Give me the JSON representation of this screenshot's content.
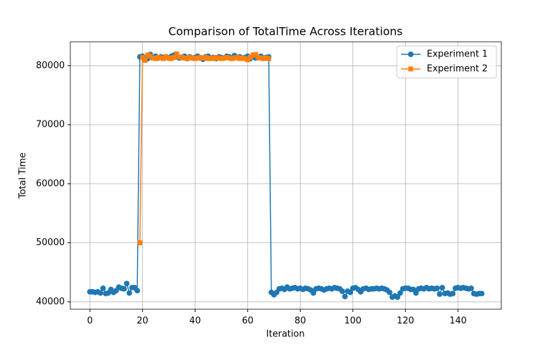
{
  "chart_data": {
    "type": "line",
    "title": "Comparison of TotalTime Across Iterations",
    "xlabel": "Iteration",
    "ylabel": "Total Time",
    "x": [
      0,
      1,
      2,
      3,
      4,
      5,
      6,
      7,
      8,
      9,
      10,
      11,
      12,
      13,
      14,
      15,
      16,
      17,
      18,
      19,
      20,
      21,
      22,
      23,
      24,
      25,
      26,
      27,
      28,
      29,
      30,
      31,
      32,
      33,
      34,
      35,
      36,
      37,
      38,
      39,
      40,
      41,
      42,
      43,
      44,
      45,
      46,
      47,
      48,
      49,
      50,
      51,
      52,
      53,
      54,
      55,
      56,
      57,
      58,
      59,
      60,
      61,
      62,
      63,
      64,
      65,
      66,
      67,
      68,
      69,
      70,
      71,
      72,
      73,
      74,
      75,
      76,
      77,
      78,
      79,
      80,
      81,
      82,
      83,
      84,
      85,
      86,
      87,
      88,
      89,
      90,
      91,
      92,
      93,
      94,
      95,
      96,
      97,
      98,
      99,
      100,
      101,
      102,
      103,
      104,
      105,
      106,
      107,
      108,
      109,
      110,
      111,
      112,
      113,
      114,
      115,
      116,
      117,
      118,
      119,
      120,
      121,
      122,
      123,
      124,
      125,
      126,
      127,
      128,
      129,
      130,
      131,
      132,
      133,
      134,
      135,
      136,
      137,
      138,
      139,
      140,
      141,
      142,
      143,
      144,
      145,
      146,
      147,
      148,
      149
    ],
    "series": [
      {
        "name": "Experiment 1",
        "color": "#1f77b4",
        "marker": "circle",
        "values": [
          41700,
          41700,
          41600,
          41700,
          41500,
          42300,
          41400,
          41500,
          42100,
          41600,
          41900,
          42500,
          42300,
          42200,
          43100,
          41500,
          42400,
          42400,
          41900,
          81500,
          81600,
          81300,
          81200,
          81900,
          81400,
          81600,
          81300,
          81500,
          81400,
          81500,
          81300,
          81600,
          81800,
          81500,
          81300,
          81400,
          81600,
          81200,
          81500,
          81300,
          81400,
          81600,
          81300,
          81100,
          81500,
          81600,
          81300,
          81400,
          81200,
          81500,
          81400,
          81300,
          81600,
          81500,
          81300,
          81700,
          81400,
          81500,
          81300,
          81400,
          81600,
          81200,
          81500,
          81300,
          81400,
          81600,
          81300,
          81400,
          81500,
          41600,
          41200,
          41600,
          42200,
          42300,
          42100,
          42500,
          42200,
          42300,
          42400,
          42200,
          42300,
          42100,
          42300,
          42200,
          42000,
          41500,
          42200,
          42300,
          42200,
          42000,
          42200,
          42300,
          42200,
          42400,
          42300,
          42200,
          41800,
          40900,
          41800,
          41600,
          42300,
          42400,
          42100,
          41700,
          42200,
          42300,
          42100,
          42200,
          42200,
          42300,
          42200,
          42300,
          42200,
          42000,
          41600,
          40800,
          41000,
          40800,
          41500,
          42200,
          42300,
          42300,
          42100,
          42100,
          41500,
          42200,
          42300,
          42200,
          42400,
          42200,
          42300,
          42200,
          42300,
          41300,
          42400,
          41400,
          41500,
          41300,
          41400,
          42300,
          42400,
          42300,
          42400,
          42300,
          42200,
          42300,
          41400,
          41300,
          41400,
          41400
        ]
      },
      {
        "name": "Experiment 2",
        "color": "#ff7f0e",
        "marker": "square",
        "values": [
          null,
          null,
          null,
          null,
          null,
          null,
          null,
          null,
          null,
          null,
          null,
          null,
          null,
          null,
          null,
          null,
          null,
          null,
          null,
          50000,
          81400,
          80900,
          81800,
          81600,
          81300,
          81200,
          81400,
          81300,
          81200,
          81500,
          81300,
          81200,
          81400,
          82000,
          81500,
          81400,
          81300,
          81200,
          81400,
          81300,
          81200,
          81300,
          81400,
          81300,
          81400,
          81200,
          81300,
          81200,
          81400,
          81300,
          81200,
          81300,
          81400,
          81300,
          81200,
          81300,
          81400,
          81200,
          81300,
          81200,
          81000,
          81400,
          81800,
          81900,
          81400,
          81300,
          81200,
          81300,
          81200,
          null,
          null,
          null,
          null,
          null,
          null,
          null,
          null,
          null,
          null,
          null,
          null,
          null,
          null,
          null,
          null,
          null,
          null,
          null,
          null,
          null,
          null,
          null,
          null,
          null,
          null,
          null,
          null,
          null,
          null,
          null,
          null,
          null,
          null,
          null,
          null,
          null,
          null,
          null,
          null,
          null,
          null,
          null,
          null,
          null,
          null,
          null,
          null,
          null,
          null,
          null,
          null,
          null,
          null,
          null,
          null,
          null,
          null,
          null,
          null,
          null,
          null,
          null,
          null,
          null,
          null,
          null,
          null,
          null,
          null,
          null,
          null,
          null,
          null,
          null,
          null,
          null,
          null,
          null,
          null,
          null
        ]
      }
    ],
    "xlim": [
      -7.45,
      156.45
    ],
    "xticks": [
      0,
      20,
      40,
      60,
      80,
      100,
      120,
      140
    ],
    "ylim": [
      38750,
      84050
    ],
    "yticks": [
      40000,
      50000,
      60000,
      70000,
      80000
    ],
    "grid": true,
    "legend": "upper right"
  }
}
